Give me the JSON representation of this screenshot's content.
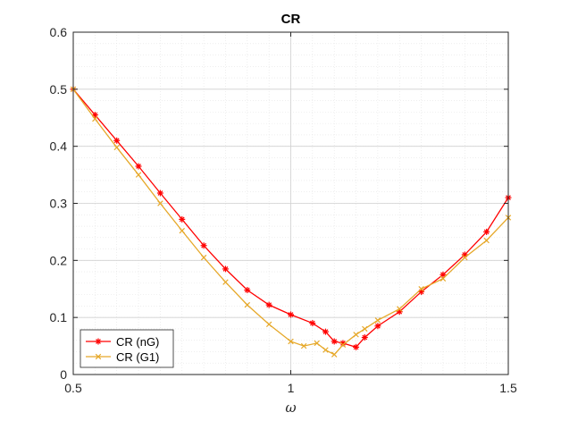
{
  "chart_data": {
    "type": "line",
    "title": "CR",
    "xlabel": "ω",
    "ylabel": "",
    "xlim": [
      0.5,
      1.5
    ],
    "ylim": [
      0,
      0.6
    ],
    "xticks": [
      0.5,
      1,
      1.5
    ],
    "xtick_labels": [
      "0.5",
      "1",
      "1.5"
    ],
    "yticks": [
      0,
      0.1,
      0.2,
      0.3,
      0.4,
      0.5,
      0.6
    ],
    "ytick_labels": [
      "0",
      "0.1",
      "0.2",
      "0.3",
      "0.4",
      "0.5",
      "0.6"
    ],
    "grid": true,
    "legend_position": "bottom-left",
    "series": [
      {
        "name": "CR (nG)",
        "color": "#ff0000",
        "marker": "asterisk",
        "x": [
          0.5,
          0.55,
          0.6,
          0.65,
          0.7,
          0.75,
          0.8,
          0.85,
          0.9,
          0.95,
          1.0,
          1.05,
          1.08,
          1.1,
          1.12,
          1.15,
          1.17,
          1.2,
          1.25,
          1.3,
          1.35,
          1.4,
          1.45,
          1.5
        ],
        "y": [
          0.5,
          0.455,
          0.41,
          0.365,
          0.318,
          0.272,
          0.226,
          0.185,
          0.148,
          0.122,
          0.105,
          0.09,
          0.075,
          0.058,
          0.055,
          0.048,
          0.065,
          0.085,
          0.11,
          0.145,
          0.175,
          0.21,
          0.25,
          0.31
        ]
      },
      {
        "name": "CR (G1)",
        "color": "#e6a829",
        "marker": "x",
        "x": [
          0.5,
          0.55,
          0.6,
          0.65,
          0.7,
          0.75,
          0.8,
          0.85,
          0.9,
          0.95,
          1.0,
          1.03,
          1.06,
          1.08,
          1.1,
          1.12,
          1.15,
          1.17,
          1.2,
          1.25,
          1.3,
          1.35,
          1.4,
          1.45,
          1.5
        ],
        "y": [
          0.5,
          0.448,
          0.398,
          0.35,
          0.3,
          0.252,
          0.205,
          0.162,
          0.122,
          0.088,
          0.058,
          0.05,
          0.055,
          0.043,
          0.035,
          0.052,
          0.07,
          0.08,
          0.095,
          0.115,
          0.15,
          0.168,
          0.205,
          0.235,
          0.275
        ]
      }
    ]
  }
}
